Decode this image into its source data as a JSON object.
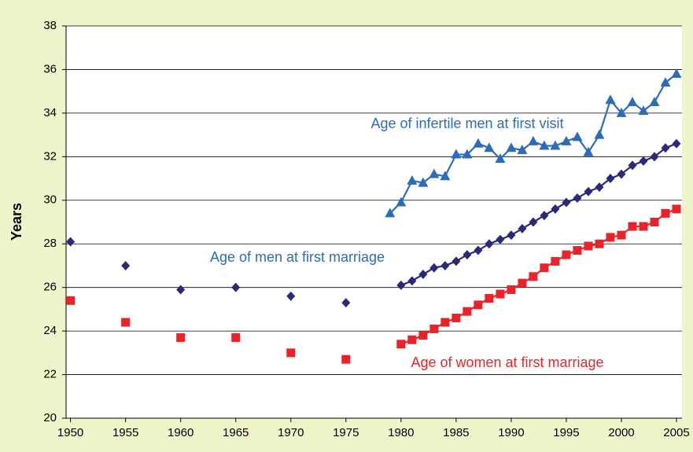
{
  "chart_data": {
    "type": "line",
    "y_label": "Years",
    "xlim": [
      1949.6,
      2005.5
    ],
    "xticks": [
      1950,
      1955,
      1960,
      1965,
      1970,
      1975,
      1980,
      1985,
      1990,
      1995,
      2000,
      2005
    ],
    "ylim": [
      20,
      38
    ],
    "yticks": [
      20,
      22,
      24,
      26,
      28,
      30,
      32,
      34,
      36,
      38
    ],
    "grid": true,
    "series": [
      {
        "name": "Age of infertile men at first visit",
        "color": "#2f6cb8",
        "label_color": "#2f6cb8",
        "marker": "triangle",
        "x": [
          1979,
          1980,
          1981,
          1982,
          1983,
          1984,
          1985,
          1986,
          1987,
          1988,
          1989,
          1990,
          1991,
          1992,
          1993,
          1994,
          1995,
          1996,
          1997,
          1998,
          1999,
          2000,
          2001,
          2002,
          2003,
          2004,
          2005
        ],
        "values": [
          29.4,
          29.9,
          30.9,
          30.8,
          31.2,
          31.1,
          32.1,
          32.1,
          32.6,
          32.4,
          31.9,
          32.4,
          32.3,
          32.7,
          32.5,
          32.5,
          32.7,
          32.9,
          32.2,
          33.0,
          34.6,
          34.0,
          34.5,
          34.1,
          34.5,
          35.4,
          35.8
        ]
      },
      {
        "name": "Age of men at first marriage",
        "color": "#2b2a7a",
        "label_color": "#2f6cb8",
        "marker": "diamond",
        "x": [
          1950,
          null,
          1955,
          null,
          1960,
          null,
          1965,
          null,
          1970,
          null,
          1975,
          null,
          1980,
          1981,
          1982,
          1983,
          1984,
          1985,
          1986,
          1987,
          1988,
          1989,
          1990,
          1991,
          1992,
          1993,
          1994,
          1995,
          1996,
          1997,
          1998,
          1999,
          2000,
          2001,
          2002,
          2003,
          2004,
          2005
        ],
        "values": [
          28.1,
          null,
          27.0,
          null,
          25.9,
          null,
          26.0,
          null,
          25.6,
          null,
          25.3,
          null,
          26.1,
          26.3,
          26.6,
          26.9,
          27.0,
          27.2,
          27.5,
          27.7,
          28.0,
          28.2,
          28.4,
          28.7,
          29.0,
          29.3,
          29.6,
          29.9,
          30.1,
          30.4,
          30.6,
          31.0,
          31.2,
          31.6,
          31.8,
          32.0,
          32.4,
          32.6
        ]
      },
      {
        "name": "Age of women at first marriage",
        "color": "#e8242a",
        "label_color": "#e8242a",
        "marker": "square",
        "x": [
          1950,
          null,
          1955,
          null,
          1960,
          null,
          1965,
          null,
          1970,
          null,
          1975,
          null,
          1980,
          1981,
          1982,
          1983,
          1984,
          1985,
          1986,
          1987,
          1988,
          1989,
          1990,
          1991,
          1992,
          1993,
          1994,
          1995,
          1996,
          1997,
          1998,
          1999,
          2000,
          2001,
          2002,
          2003,
          2004,
          2005
        ],
        "values": [
          25.4,
          null,
          24.4,
          null,
          23.7,
          null,
          23.7,
          null,
          23.0,
          null,
          22.7,
          null,
          23.4,
          23.6,
          23.8,
          24.1,
          24.4,
          24.6,
          24.9,
          25.2,
          25.5,
          25.7,
          25.9,
          26.2,
          26.5,
          26.9,
          27.2,
          27.5,
          27.7,
          27.9,
          28.0,
          28.3,
          28.4,
          28.8,
          28.8,
          29.0,
          29.4,
          29.6
        ]
      }
    ]
  }
}
